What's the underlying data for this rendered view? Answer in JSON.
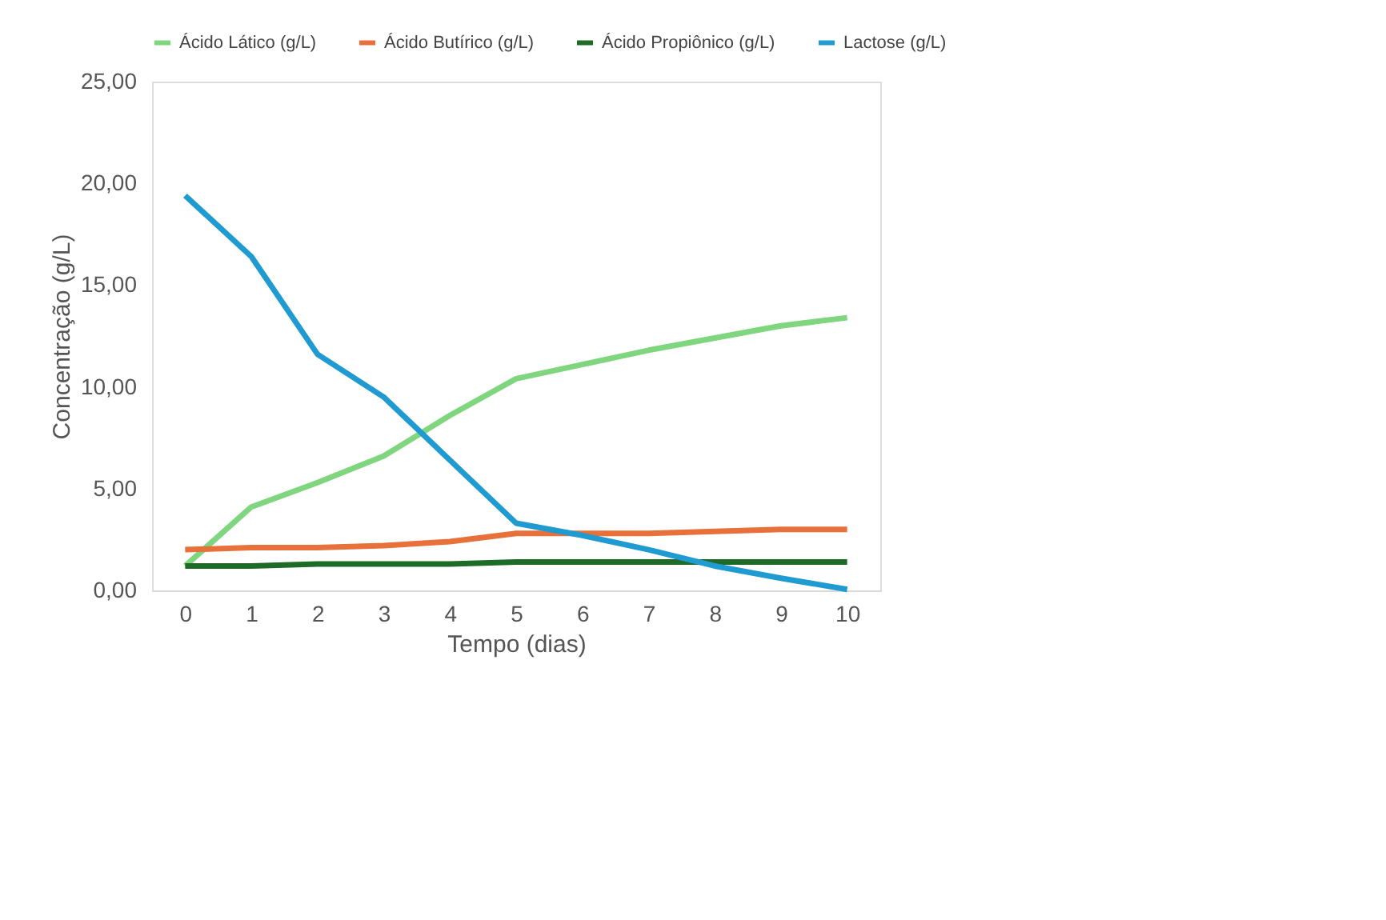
{
  "chart_data": {
    "type": "line",
    "xlabel": "Tempo (dias)",
    "ylabel": "Concentração (g/L)",
    "categories": [
      "0",
      "1",
      "2",
      "3",
      "4",
      "5",
      "6",
      "7",
      "8",
      "9",
      "10"
    ],
    "series": [
      {
        "name": "Ácido Lático (g/L)",
        "color": "#7fd67f",
        "values": [
          1.2,
          4.1,
          5.3,
          6.6,
          8.6,
          10.4,
          11.1,
          11.8,
          12.4,
          13.0,
          13.4
        ]
      },
      {
        "name": "Ácido Butírico (g/L)",
        "color": "#e8703a",
        "values": [
          2.0,
          2.1,
          2.1,
          2.2,
          2.4,
          2.8,
          2.8,
          2.8,
          2.9,
          3.0,
          3.0
        ]
      },
      {
        "name": "Ácido Propiônico (g/L)",
        "color": "#1e6b28",
        "values": [
          1.2,
          1.2,
          1.3,
          1.3,
          1.3,
          1.4,
          1.4,
          1.4,
          1.4,
          1.4,
          1.4
        ]
      },
      {
        "name": "Lactose (g/L)",
        "color": "#1f9bd1",
        "values": [
          19.4,
          16.4,
          11.6,
          9.5,
          6.4,
          3.3,
          2.7,
          2.0,
          1.2,
          0.6,
          0.05
        ]
      }
    ],
    "ylim": [
      0,
      25
    ],
    "yticks": [
      {
        "value": 0,
        "label": "0,00"
      },
      {
        "value": 5,
        "label": "5,00"
      },
      {
        "value": 10,
        "label": "10,00"
      },
      {
        "value": 15,
        "label": "15,00"
      },
      {
        "value": 20,
        "label": "20,00"
      },
      {
        "value": 25,
        "label": "25,00"
      }
    ],
    "grid": false,
    "legend": "top",
    "marker": "none",
    "line_style": "solid"
  }
}
